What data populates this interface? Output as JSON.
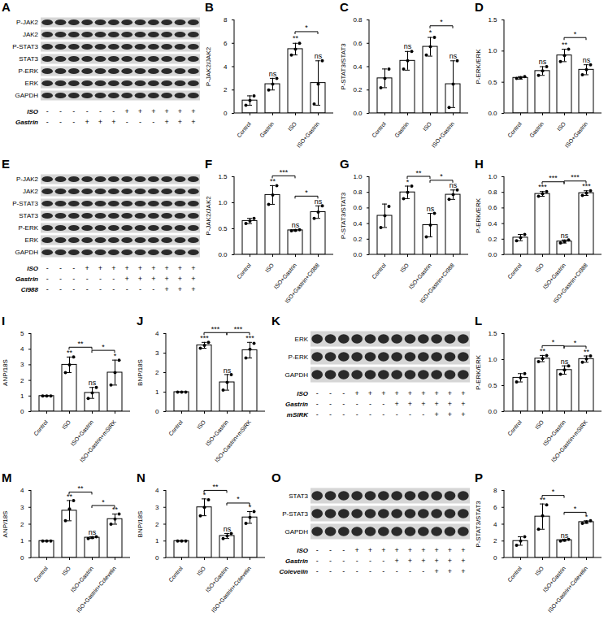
{
  "chart_data": [
    {
      "type": "bar",
      "panel": "B",
      "y_label": "P-JAK2/JAK2",
      "color": "#ffffff",
      "categories": [
        "Control",
        "Gastrin",
        "ISO",
        "ISO+Gastrin"
      ],
      "values": [
        1.1,
        2.5,
        5.5,
        2.6
      ],
      "errors": [
        0.4,
        0.5,
        0.5,
        1.9
      ],
      "points": [
        [
          0.7,
          1.1,
          1.5
        ],
        [
          2.0,
          2.5,
          3.0
        ],
        [
          5.0,
          5.5,
          6.0
        ],
        [
          0.8,
          2.5,
          4.5
        ]
      ],
      "annotations": [
        null,
        "ns",
        "**",
        "ns"
      ],
      "comparisons": [
        {
          "from": "ISO",
          "to": "ISO+Gastrin",
          "label": "*"
        }
      ],
      "ylim": [
        0,
        8
      ],
      "yticks": [
        0,
        2,
        4,
        6,
        8
      ]
    },
    {
      "type": "bar",
      "panel": "C",
      "y_label": "P-STAT3/STAT3",
      "color": "#ffffff",
      "categories": [
        "Control",
        "Gastrin",
        "ISO",
        "ISO+Gastrin"
      ],
      "values": [
        0.3,
        0.45,
        0.57,
        0.25
      ],
      "errors": [
        0.08,
        0.08,
        0.08,
        0.2
      ],
      "points": [
        [
          0.22,
          0.3,
          0.38
        ],
        [
          0.38,
          0.45,
          0.53
        ],
        [
          0.5,
          0.57,
          0.65
        ],
        [
          0.05,
          0.25,
          0.45
        ]
      ],
      "annotations": [
        null,
        "ns",
        "*",
        "ns"
      ],
      "comparisons": [
        {
          "from": "ISO",
          "to": "ISO+Gastrin",
          "label": "*"
        }
      ],
      "ylim": [
        0,
        0.8
      ],
      "yticks": [
        {
          "value": 0,
          "label": "0.0"
        },
        0.2,
        0.4,
        0.6,
        0.8
      ]
    },
    {
      "type": "bar",
      "panel": "D",
      "y_label": "P-ERK/ERK",
      "color": "#ffffff",
      "categories": [
        "Control",
        "Gastrin",
        "ISO",
        "ISO+Gastrin"
      ],
      "values": [
        0.57,
        0.68,
        0.93,
        0.7
      ],
      "errors": [
        0.02,
        0.07,
        0.1,
        0.08
      ],
      "points": [
        [
          0.56,
          0.57,
          0.59
        ],
        [
          0.61,
          0.68,
          0.75
        ],
        [
          0.83,
          0.93,
          1.03
        ],
        [
          0.62,
          0.7,
          0.78
        ]
      ],
      "annotations": [
        null,
        "ns",
        "**",
        "ns"
      ],
      "comparisons": [
        {
          "from": "ISO",
          "to": "ISO+Gastrin",
          "label": "*"
        }
      ],
      "ylim": [
        0,
        1.5
      ],
      "yticks": [
        {
          "value": 0,
          "label": "0.0"
        },
        0.5,
        {
          "value": 1,
          "label": "1.0"
        },
        1.5
      ]
    },
    {
      "type": "bar",
      "panel": "F",
      "y_label": "P-JAK2/JAK2",
      "color": "#ffffff",
      "categories": [
        "Control",
        "ISO",
        "ISO+Gastrin",
        "ISO+Gastrin+CI988"
      ],
      "values": [
        0.65,
        1.15,
        0.47,
        0.82
      ],
      "errors": [
        0.05,
        0.18,
        0.01,
        0.12
      ],
      "points": [
        [
          0.6,
          0.65,
          0.7
        ],
        [
          0.97,
          1.15,
          1.33
        ],
        [
          0.46,
          0.47,
          0.48
        ],
        [
          0.7,
          0.82,
          0.94
        ]
      ],
      "annotations": [
        null,
        "**",
        "ns",
        "ns"
      ],
      "comparisons": [
        {
          "from": "ISO",
          "to": "ISO+Gastrin",
          "label": "***"
        },
        {
          "from": "ISO+Gastrin",
          "to": "ISO+Gastrin+CI988",
          "label": "*"
        }
      ],
      "ylim": [
        0,
        1.5
      ],
      "yticks": [
        {
          "value": 0,
          "label": "0.0"
        },
        0.5,
        {
          "value": 1,
          "label": "1.0"
        },
        1.5
      ]
    },
    {
      "type": "bar",
      "panel": "G",
      "y_label": "P-STAT3/STAT3",
      "color": "#ffffff",
      "categories": [
        "Control",
        "ISO",
        "ISO+Gastrin",
        "ISO+Gastrin+CI988"
      ],
      "values": [
        0.5,
        0.8,
        0.38,
        0.77
      ],
      "errors": [
        0.15,
        0.08,
        0.15,
        0.06
      ],
      "points": [
        [
          0.35,
          0.5,
          0.62
        ],
        [
          0.72,
          0.8,
          0.88
        ],
        [
          0.23,
          0.38,
          0.53
        ],
        [
          0.71,
          0.77,
          0.83
        ]
      ],
      "annotations": [
        null,
        "*",
        "ns",
        "ns"
      ],
      "comparisons": [
        {
          "from": "ISO",
          "to": "ISO+Gastrin",
          "label": "**"
        },
        {
          "from": "ISO+Gastrin",
          "to": "ISO+Gastrin+CI988",
          "label": "*"
        }
      ],
      "ylim": [
        0,
        1
      ],
      "yticks": [
        {
          "value": 0,
          "label": "0.0"
        },
        0.2,
        0.4,
        0.6,
        0.8,
        {
          "value": 1,
          "label": "1.0"
        }
      ]
    },
    {
      "type": "bar",
      "panel": "H",
      "y_label": "P-ERK/ERK",
      "color": "#ffffff",
      "categories": [
        "Control",
        "ISO",
        "ISO+Gastrin",
        "ISO+Gastrin+CI988"
      ],
      "values": [
        0.22,
        0.78,
        0.17,
        0.79
      ],
      "errors": [
        0.04,
        0.03,
        0.02,
        0.03
      ],
      "points": [
        [
          0.18,
          0.22,
          0.26
        ],
        [
          0.75,
          0.78,
          0.81
        ],
        [
          0.15,
          0.17,
          0.19
        ],
        [
          0.76,
          0.79,
          0.82
        ]
      ],
      "annotations": [
        null,
        "***",
        "ns",
        "***"
      ],
      "comparisons": [
        {
          "from": "ISO",
          "to": "ISO+Gastrin",
          "label": "***"
        },
        {
          "from": "ISO+Gastrin",
          "to": "ISO+Gastrin+CI988",
          "label": "***"
        }
      ],
      "ylim": [
        0,
        1
      ],
      "yticks": [
        {
          "value": 0,
          "label": "0.0"
        },
        0.2,
        0.4,
        0.6,
        0.8,
        {
          "value": 1,
          "label": "1.0"
        }
      ]
    },
    {
      "type": "bar",
      "panel": "I",
      "y_label": "ANP/18S",
      "color": "#ffffff",
      "categories": [
        "Control",
        "ISO",
        "ISO+Gastrin",
        "ISO+Gastrin+mSIRK"
      ],
      "values": [
        1,
        3.0,
        1.2,
        2.5
      ],
      "errors": [
        0,
        0.5,
        0.35,
        0.8
      ],
      "points": [
        [
          1,
          1,
          1
        ],
        [
          2.5,
          3.0,
          3.5
        ],
        [
          0.85,
          1.2,
          1.55
        ],
        [
          1.7,
          2.5,
          3.3
        ]
      ],
      "annotations": [
        null,
        "**",
        "ns",
        "*"
      ],
      "comparisons": [
        {
          "from": "ISO",
          "to": "ISO+Gastrin",
          "label": "**"
        },
        {
          "from": "ISO+Gastrin",
          "to": "ISO+Gastrin+mSIRK",
          "label": "*"
        }
      ],
      "ylim": [
        0,
        5
      ],
      "yticks": [
        0,
        1,
        2,
        3,
        4,
        5
      ]
    },
    {
      "type": "bar",
      "panel": "J",
      "y_label": "BNP/18S",
      "color": "#ffffff",
      "categories": [
        "Control",
        "ISO",
        "ISO+Gastrin",
        "ISO+Gastrin+mSIRK"
      ],
      "values": [
        1,
        3.4,
        1.5,
        3.15
      ],
      "errors": [
        0,
        0.15,
        0.4,
        0.4
      ],
      "points": [
        [
          1,
          1,
          1
        ],
        [
          3.25,
          3.4,
          3.55
        ],
        [
          1.1,
          1.5,
          1.9
        ],
        [
          2.75,
          3.2,
          3.5
        ]
      ],
      "annotations": [
        null,
        "***",
        "ns",
        "***"
      ],
      "comparisons": [
        {
          "from": "ISO",
          "to": "ISO+Gastrin",
          "label": "***"
        },
        {
          "from": "ISO+Gastrin",
          "to": "ISO+Gastrin+mSIRK",
          "label": "***"
        }
      ],
      "ylim": [
        0,
        4
      ],
      "yticks": [
        0,
        1,
        2,
        3,
        4
      ]
    },
    {
      "type": "bar",
      "panel": "L",
      "y_label": "P-ERK/ERK",
      "color": "#ffffff",
      "categories": [
        "Control",
        "ISO",
        "ISO+Gastrin",
        "ISO+Gastrin+mSIRK"
      ],
      "values": [
        0.65,
        1.02,
        0.8,
        1.01
      ],
      "errors": [
        0.08,
        0.06,
        0.08,
        0.06
      ],
      "points": [
        [
          0.57,
          0.65,
          0.73
        ],
        [
          0.96,
          1.02,
          1.08
        ],
        [
          0.72,
          0.8,
          0.88
        ],
        [
          0.95,
          1.01,
          1.07
        ]
      ],
      "annotations": [
        null,
        "**",
        "ns",
        "**"
      ],
      "comparisons": [
        {
          "from": "ISO",
          "to": "ISO+Gastrin",
          "label": "*"
        },
        {
          "from": "ISO+Gastrin",
          "to": "ISO+Gastrin+mSIRK",
          "label": "*"
        }
      ],
      "ylim": [
        0,
        1.5
      ],
      "yticks": [
        {
          "value": 0,
          "label": "0.0"
        },
        0.5,
        {
          "value": 1,
          "label": "1.0"
        },
        1.5
      ]
    },
    {
      "type": "bar",
      "panel": "M",
      "y_label": "ANP/18S",
      "color": "#ffffff",
      "categories": [
        "Control",
        "ISO",
        "ISO+Gastrin",
        "ISO+Gastrin+Colevelin"
      ],
      "values": [
        1,
        2.8,
        1.2,
        2.3
      ],
      "errors": [
        0,
        0.6,
        0.05,
        0.3
      ],
      "points": [
        [
          1,
          1,
          1
        ],
        [
          2.2,
          2.9,
          3.4
        ],
        [
          1.15,
          1.2,
          1.25
        ],
        [
          2.0,
          2.3,
          2.6
        ]
      ],
      "annotations": [
        null,
        "**",
        "ns",
        "**"
      ],
      "comparisons": [
        {
          "from": "ISO",
          "to": "ISO+Gastrin",
          "label": "**"
        },
        {
          "from": "ISO+Gastrin",
          "to": "ISO+Gastrin+Colevelin",
          "label": "*"
        }
      ],
      "ylim": [
        0,
        4
      ],
      "yticks": [
        0,
        1,
        2,
        3,
        4
      ]
    },
    {
      "type": "bar",
      "panel": "N",
      "y_label": "BNP/18S",
      "color": "#ffffff",
      "categories": [
        "Control",
        "ISO",
        "ISO+Gastrin",
        "ISO+Gastrin+Colevelin"
      ],
      "values": [
        1,
        3.0,
        1.3,
        2.4
      ],
      "errors": [
        0,
        0.5,
        0.15,
        0.35
      ],
      "points": [
        [
          1,
          1,
          1
        ],
        [
          2.5,
          3.0,
          3.45
        ],
        [
          1.15,
          1.3,
          1.45
        ],
        [
          2.05,
          2.4,
          2.75
        ]
      ],
      "annotations": [
        null,
        "*",
        "ns",
        "*"
      ],
      "comparisons": [
        {
          "from": "ISO",
          "to": "ISO+Gastrin",
          "label": "**"
        },
        {
          "from": "ISO+Gastrin",
          "to": "ISO+Gastrin+Colevelin",
          "label": "*"
        }
      ],
      "ylim": [
        0,
        4
      ],
      "yticks": [
        0,
        1,
        2,
        3,
        4
      ]
    },
    {
      "type": "bar",
      "panel": "P",
      "y_label": "P-STAT3/STAT3",
      "color": "#ffffff",
      "categories": [
        "Control",
        "ISO",
        "ISO+Gastrin",
        "ISO+Gastrin+Colevelin"
      ],
      "values": [
        2.0,
        4.9,
        2.1,
        4.25
      ],
      "errors": [
        0.5,
        1.5,
        0.1,
        0.15
      ],
      "points": [
        [
          1.5,
          2.0,
          2.5
        ],
        [
          3.4,
          5.0,
          6.3
        ],
        [
          2.0,
          2.1,
          2.2
        ],
        [
          4.1,
          4.25,
          4.4
        ]
      ],
      "annotations": [
        null,
        "**",
        "ns",
        "*"
      ],
      "comparisons": [
        {
          "from": "ISO",
          "to": "ISO+Gastrin",
          "label": "*"
        },
        {
          "from": "ISO+Gastrin",
          "to": "ISO+Gastrin+Colevelin",
          "label": "*"
        }
      ],
      "ylim": [
        0,
        8
      ],
      "yticks": [
        0,
        2,
        4,
        6,
        8
      ]
    }
  ],
  "blots": [
    {
      "panel": "A",
      "rows": [
        "P-JAK2",
        "JAK2",
        "P-STAT3",
        "STAT3",
        "P-ERK",
        "ERK",
        "GAPDH"
      ],
      "conditions": [
        {
          "name": "ISO",
          "signs": [
            "-",
            "-",
            "-",
            "-",
            "-",
            "-",
            "+",
            "+",
            "+",
            "+",
            "+",
            "+"
          ]
        },
        {
          "name": "Gastrin",
          "signs": [
            "-",
            "-",
            "-",
            "+",
            "+",
            "+",
            "-",
            "-",
            "-",
            "+",
            "+",
            "+"
          ]
        }
      ]
    },
    {
      "panel": "E",
      "rows": [
        "P-JAK2",
        "JAK2",
        "P-STAT3",
        "STAT3",
        "P-ERK",
        "ERK",
        "GAPDH"
      ],
      "conditions": [
        {
          "name": "ISO",
          "signs": [
            "-",
            "-",
            "-",
            "+",
            "+",
            "+",
            "+",
            "+",
            "+",
            "+",
            "+",
            "+"
          ]
        },
        {
          "name": "Gastrin",
          "signs": [
            "-",
            "-",
            "-",
            "-",
            "-",
            "-",
            "+",
            "+",
            "+",
            "+",
            "+",
            "+"
          ]
        },
        {
          "name": "CI988",
          "signs": [
            "-",
            "-",
            "-",
            "-",
            "-",
            "-",
            "-",
            "-",
            "-",
            "+",
            "+",
            "+"
          ]
        }
      ]
    },
    {
      "panel": "K",
      "rows": [
        "ERK",
        "P-ERK",
        "GAPDH"
      ],
      "conditions": [
        {
          "name": "ISO",
          "signs": [
            "-",
            "-",
            "-",
            "+",
            "+",
            "+",
            "+",
            "+",
            "+",
            "+",
            "+",
            "+"
          ]
        },
        {
          "name": "Gastrin",
          "signs": [
            "-",
            "-",
            "-",
            "-",
            "-",
            "-",
            "+",
            "+",
            "+",
            "+",
            "+",
            "+"
          ]
        },
        {
          "name": "mSIRK",
          "signs": [
            "-",
            "-",
            "-",
            "-",
            "-",
            "-",
            "-",
            "-",
            "-",
            "+",
            "+",
            "+"
          ]
        }
      ]
    },
    {
      "panel": "O",
      "rows": [
        "STAT3",
        "P-STAT3",
        "GAPDH"
      ],
      "conditions": [
        {
          "name": "ISO",
          "signs": [
            "-",
            "-",
            "-",
            "+",
            "+",
            "+",
            "+",
            "+",
            "+",
            "+",
            "+",
            "+"
          ]
        },
        {
          "name": "Gastrin",
          "signs": [
            "-",
            "-",
            "-",
            "-",
            "-",
            "-",
            "+",
            "+",
            "+",
            "+",
            "+",
            "+"
          ]
        },
        {
          "name": "Colevelin",
          "signs": [
            "-",
            "-",
            "-",
            "-",
            "-",
            "-",
            "-",
            "-",
            "-",
            "+",
            "+",
            "+"
          ]
        }
      ]
    }
  ]
}
